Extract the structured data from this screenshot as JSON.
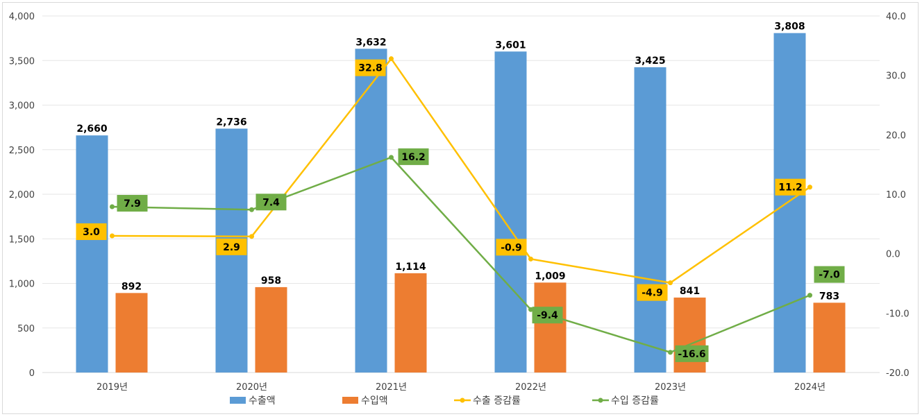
{
  "chart_data": {
    "type": "bar+line",
    "categories": [
      "2019년",
      "2020년",
      "2021년",
      "2022년",
      "2023년",
      "2024년"
    ],
    "series": [
      {
        "name": "수출액",
        "type": "bar",
        "axis": "left",
        "color": "#5B9BD5",
        "values": [
          2660,
          2736,
          3632,
          3601,
          3425,
          3808
        ],
        "labels": [
          "2,660",
          "2,736",
          "3,632",
          "3,601",
          "3,425",
          "3,808"
        ]
      },
      {
        "name": "수입액",
        "type": "bar",
        "axis": "left",
        "color": "#ED7D31",
        "values": [
          892,
          958,
          1114,
          1009,
          841,
          783
        ],
        "labels": [
          "892",
          "958",
          "1,114",
          "1,009",
          "841",
          "783"
        ]
      },
      {
        "name": "수출 증감률",
        "type": "line",
        "axis": "right",
        "color": "#FFC000",
        "values": [
          3.0,
          2.9,
          32.8,
          -0.9,
          -4.9,
          11.2
        ],
        "labels": [
          "3.0",
          "2.9",
          "32.8",
          "-0.9",
          "-4.9",
          "11.2"
        ]
      },
      {
        "name": "수입 증감률",
        "type": "line",
        "axis": "right",
        "color": "#70AD47",
        "values": [
          7.9,
          7.4,
          16.2,
          -9.4,
          -16.6,
          -7.0
        ],
        "labels": [
          "7.9",
          "7.4",
          "16.2",
          "-9.4",
          "-16.6",
          "-7.0"
        ]
      }
    ],
    "y_left": {
      "range": [
        0,
        4000
      ],
      "ticks": [
        "0",
        "500",
        "1,000",
        "1,500",
        "2,000",
        "2,500",
        "3,000",
        "3,500",
        "4,000"
      ]
    },
    "y_right": {
      "range": [
        -20,
        40
      ],
      "ticks": [
        "-20.0",
        "-10.0",
        "0.0",
        "10.0",
        "20.0",
        "30.0",
        "40.0"
      ]
    },
    "grid": true,
    "legend": "bottom"
  }
}
